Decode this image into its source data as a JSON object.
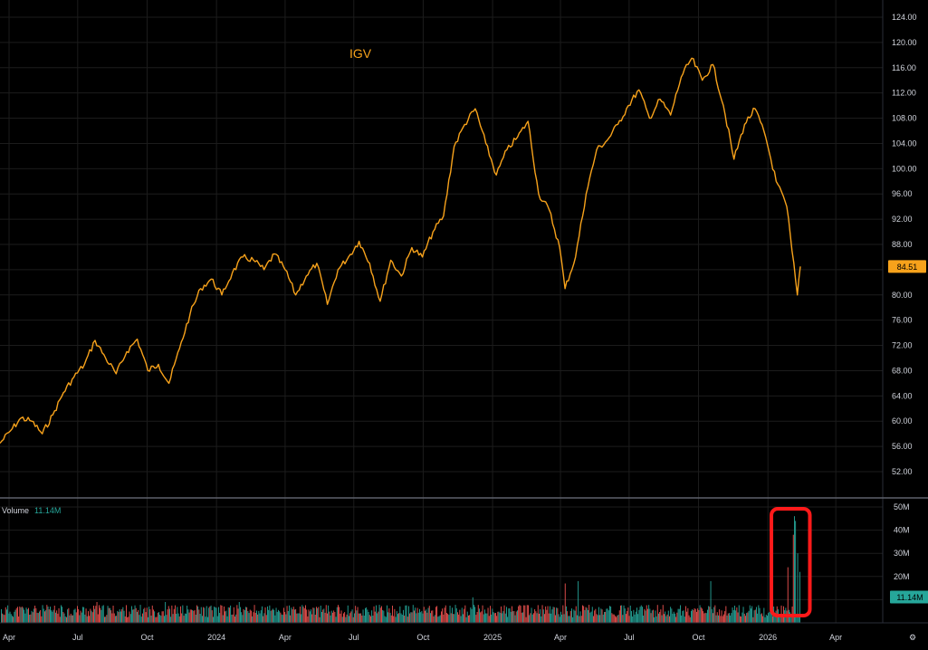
{
  "chart_data": {
    "type": "line",
    "title": "IGV",
    "colors": {
      "background": "#000000",
      "price_line": "#f7a21b",
      "grid": "#1c1c1c",
      "volume_up": "#26a69a",
      "volume_down": "#ef5350",
      "volume_last": "#26a69a",
      "highlight_box": "#ff1a1a",
      "axis_text": "#d1d4dc",
      "separator": "#5d606b"
    },
    "price": {
      "last_value": "84.51",
      "y_ticks": [
        "124.00",
        "120.00",
        "116.00",
        "112.00",
        "108.00",
        "104.00",
        "100.00",
        "96.00",
        "92.00",
        "88.00",
        "84.00",
        "80.00",
        "76.00",
        "72.00",
        "68.00",
        "64.00",
        "60.00",
        "56.00",
        "52.00"
      ],
      "ylim": [
        48,
        125
      ],
      "points": [
        [
          "2023-03-20",
          56.5
        ],
        [
          "2023-04-03",
          58.5
        ],
        [
          "2023-04-17",
          60.5
        ],
        [
          "2023-05-01",
          60.0
        ],
        [
          "2023-05-15",
          58.0
        ],
        [
          "2023-05-29",
          61.0
        ],
        [
          "2023-06-12",
          64.5
        ],
        [
          "2023-06-26",
          67.0
        ],
        [
          "2023-07-10",
          69.0
        ],
        [
          "2023-07-24",
          72.8
        ],
        [
          "2023-08-07",
          70.0
        ],
        [
          "2023-08-21",
          67.5
        ],
        [
          "2023-09-04",
          71.0
        ],
        [
          "2023-09-18",
          73.0
        ],
        [
          "2023-10-02",
          68.0
        ],
        [
          "2023-10-16",
          69.0
        ],
        [
          "2023-10-30",
          66.0
        ],
        [
          "2023-11-13",
          71.5
        ],
        [
          "2023-11-27",
          77.0
        ],
        [
          "2023-12-11",
          81.0
        ],
        [
          "2023-12-25",
          82.5
        ],
        [
          "2024-01-08",
          80.0
        ],
        [
          "2024-01-22",
          83.5
        ],
        [
          "2024-02-05",
          86.0
        ],
        [
          "2024-02-19",
          85.5
        ],
        [
          "2024-03-04",
          84.0
        ],
        [
          "2024-03-18",
          86.5
        ],
        [
          "2024-04-01",
          84.0
        ],
        [
          "2024-04-15",
          80.0
        ],
        [
          "2024-04-29",
          83.0
        ],
        [
          "2024-05-13",
          85.0
        ],
        [
          "2024-05-27",
          78.5
        ],
        [
          "2024-06-10",
          84.0
        ],
        [
          "2024-06-24",
          86.0
        ],
        [
          "2024-07-08",
          88.5
        ],
        [
          "2024-07-22",
          85.0
        ],
        [
          "2024-08-05",
          79.0
        ],
        [
          "2024-08-19",
          85.5
        ],
        [
          "2024-09-02",
          83.0
        ],
        [
          "2024-09-16",
          87.5
        ],
        [
          "2024-09-30",
          86.0
        ],
        [
          "2024-10-14",
          90.0
        ],
        [
          "2024-10-28",
          92.5
        ],
        [
          "2024-11-11",
          103.5
        ],
        [
          "2024-11-25",
          107.0
        ],
        [
          "2024-12-09",
          109.5
        ],
        [
          "2024-12-23",
          104.0
        ],
        [
          "2025-01-06",
          99.0
        ],
        [
          "2025-01-20",
          103.0
        ],
        [
          "2025-02-03",
          105.0
        ],
        [
          "2025-02-17",
          107.5
        ],
        [
          "2025-03-03",
          96.0
        ],
        [
          "2025-03-17",
          93.5
        ],
        [
          "2025-03-31",
          87.5
        ],
        [
          "2025-04-07",
          81.0
        ],
        [
          "2025-04-21",
          86.0
        ],
        [
          "2025-05-05",
          96.0
        ],
        [
          "2025-05-19",
          103.0
        ],
        [
          "2025-06-02",
          104.5
        ],
        [
          "2025-06-16",
          107.0
        ],
        [
          "2025-06-30",
          110.0
        ],
        [
          "2025-07-14",
          112.5
        ],
        [
          "2025-07-28",
          108.0
        ],
        [
          "2025-08-11",
          111.0
        ],
        [
          "2025-08-25",
          108.5
        ],
        [
          "2025-09-08",
          114.5
        ],
        [
          "2025-09-22",
          117.5
        ],
        [
          "2025-10-06",
          114.0
        ],
        [
          "2025-10-20",
          116.5
        ],
        [
          "2025-11-03",
          110.0
        ],
        [
          "2025-11-17",
          101.5
        ],
        [
          "2025-12-01",
          107.0
        ],
        [
          "2025-12-15",
          109.5
        ],
        [
          "2025-12-29",
          105.0
        ],
        [
          "2026-01-12",
          98.0
        ],
        [
          "2026-01-26",
          94.0
        ],
        [
          "2026-02-02",
          87.0
        ],
        [
          "2026-02-09",
          80.0
        ],
        [
          "2026-02-13",
          84.51
        ]
      ]
    },
    "volume": {
      "label": "Volume",
      "last_value": "11.14M",
      "y_ticks": [
        "50M",
        "40M",
        "30M",
        "20M",
        "10M"
      ],
      "ylim": [
        0,
        52
      ],
      "baseline_millions": 6,
      "spikes": [
        [
          "2023-07-27",
          9
        ],
        [
          "2023-10-25",
          9
        ],
        [
          "2024-01-31",
          9
        ],
        [
          "2024-06-20",
          11
        ],
        [
          "2024-12-06",
          11
        ],
        [
          "2025-04-07",
          17
        ],
        [
          "2025-04-24",
          18
        ],
        [
          "2025-10-01",
          18
        ],
        [
          "2025-10-17",
          18
        ],
        [
          "2026-01-27",
          24
        ],
        [
          "2026-02-03",
          38
        ],
        [
          "2026-02-05",
          46
        ],
        [
          "2026-02-06",
          44
        ],
        [
          "2026-02-09",
          30
        ],
        [
          "2026-02-12",
          22
        ],
        [
          "2026-02-13",
          11.14
        ]
      ],
      "highlight": {
        "from": "2026-01-20",
        "to": "2026-02-16"
      }
    },
    "x_ticks": [
      {
        "label": "Apr",
        "date": "2023-04-01"
      },
      {
        "label": "Jul",
        "date": "2023-07-01"
      },
      {
        "label": "Oct",
        "date": "2023-10-01"
      },
      {
        "label": "2024",
        "date": "2024-01-01"
      },
      {
        "label": "Apr",
        "date": "2024-04-01"
      },
      {
        "label": "Jul",
        "date": "2024-07-01"
      },
      {
        "label": "Oct",
        "date": "2024-10-01"
      },
      {
        "label": "2025",
        "date": "2025-01-01"
      },
      {
        "label": "Apr",
        "date": "2025-04-01"
      },
      {
        "label": "Jul",
        "date": "2025-07-01"
      },
      {
        "label": "Oct",
        "date": "2025-10-01"
      },
      {
        "label": "2026",
        "date": "2026-01-01"
      },
      {
        "label": "Apr",
        "date": "2026-04-01"
      }
    ],
    "grid": true
  }
}
